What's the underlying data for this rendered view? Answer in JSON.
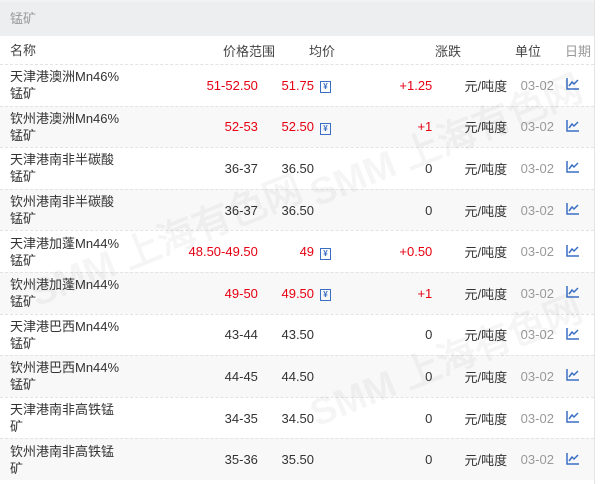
{
  "title": "锰矿",
  "headers": {
    "name": "名称",
    "range": "价格范围",
    "avg": "均价",
    "change": "涨跌",
    "unit": "单位",
    "date": "日期"
  },
  "watermark": "SMM 上海有色网",
  "colors": {
    "up": "#e60012",
    "icon": "#3a6fc4"
  },
  "rows": [
    {
      "name": "天津港澳洲Mn46%锰矿",
      "range": "51-52.50",
      "avg": "51.75",
      "change": "+1.25",
      "unit": "元/吨度",
      "date": "03-02",
      "up": true
    },
    {
      "name": "钦州港澳洲Mn46%锰矿",
      "range": "52-53",
      "avg": "52.50",
      "change": "+1",
      "unit": "元/吨度",
      "date": "03-02",
      "up": true
    },
    {
      "name": "天津港南非半碳酸锰矿",
      "range": "36-37",
      "avg": "36.50",
      "change": "0",
      "unit": "元/吨度",
      "date": "03-02",
      "up": false
    },
    {
      "name": "钦州港南非半碳酸锰矿",
      "range": "36-37",
      "avg": "36.50",
      "change": "0",
      "unit": "元/吨度",
      "date": "03-02",
      "up": false
    },
    {
      "name": "天津港加蓬Mn44%锰矿",
      "range": "48.50-49.50",
      "avg": "49",
      "change": "+0.50",
      "unit": "元/吨度",
      "date": "03-02",
      "up": true
    },
    {
      "name": "钦州港加蓬Mn44%锰矿",
      "range": "49-50",
      "avg": "49.50",
      "change": "+1",
      "unit": "元/吨度",
      "date": "03-02",
      "up": true
    },
    {
      "name": "天津港巴西Mn44%锰矿",
      "range": "43-44",
      "avg": "43.50",
      "change": "0",
      "unit": "元/吨度",
      "date": "03-02",
      "up": false
    },
    {
      "name": "钦州港巴西Mn44%锰矿",
      "range": "44-45",
      "avg": "44.50",
      "change": "0",
      "unit": "元/吨度",
      "date": "03-02",
      "up": false
    },
    {
      "name": "天津港南非高铁锰矿",
      "range": "34-35",
      "avg": "34.50",
      "change": "0",
      "unit": "元/吨度",
      "date": "03-02",
      "up": false
    },
    {
      "name": "钦州港南非高铁锰矿",
      "range": "35-36",
      "avg": "35.50",
      "change": "0",
      "unit": "元/吨度",
      "date": "03-02",
      "up": false
    }
  ]
}
